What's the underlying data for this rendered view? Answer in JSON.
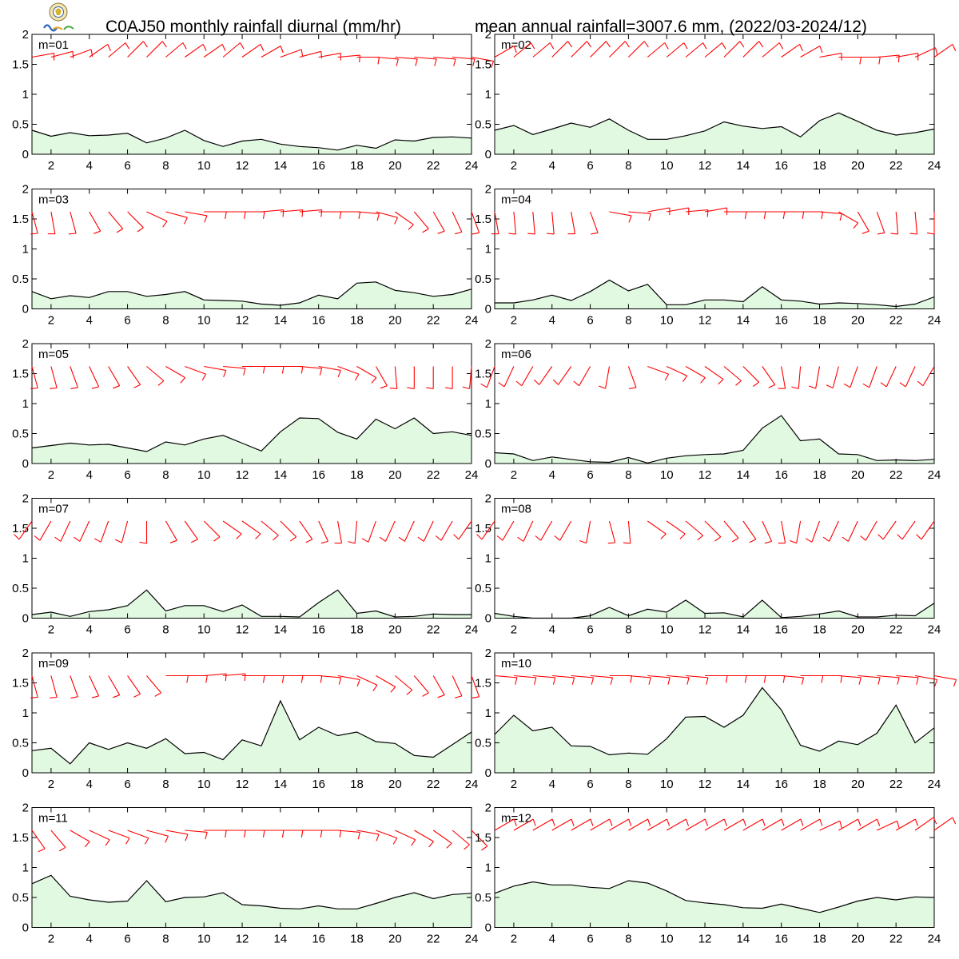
{
  "title": "C0AJ50 monthly rainfall diurnal (mm/hr)",
  "subtitle": "mean annual rainfall=3007.6 mm, (2022/03-2024/12)",
  "colors": {
    "area_fill": "#e1f9e1",
    "line": "#000000",
    "wind_barb": "#ff0000"
  },
  "chart_data": [
    {
      "type": "area",
      "panel_label": "m=01",
      "x": [
        1,
        2,
        3,
        4,
        5,
        6,
        7,
        8,
        9,
        10,
        11,
        12,
        13,
        14,
        15,
        16,
        17,
        18,
        19,
        20,
        21,
        22,
        23,
        24
      ],
      "values": [
        0.4,
        0.3,
        0.36,
        0.31,
        0.32,
        0.35,
        0.19,
        0.27,
        0.4,
        0.23,
        0.13,
        0.22,
        0.25,
        0.17,
        0.13,
        0.11,
        0.07,
        0.15,
        0.1,
        0.24,
        0.22,
        0.28,
        0.29,
        0.27
      ],
      "wind_from_deg": [
        80,
        75,
        70,
        55,
        50,
        45,
        45,
        50,
        55,
        55,
        50,
        55,
        60,
        70,
        75,
        80,
        85,
        90,
        95,
        95,
        95,
        95,
        95,
        100
      ],
      "xlim": [
        1,
        24
      ],
      "ylim": [
        0,
        2
      ],
      "x_ticks": [
        "2",
        "4",
        "6",
        "8",
        "10",
        "12",
        "14",
        "16",
        "18",
        "20",
        "22",
        "24"
      ],
      "y_ticks": [
        "0",
        "0.5",
        "1",
        "1.5",
        "2"
      ]
    },
    {
      "type": "area",
      "panel_label": "m=02",
      "x": [
        1,
        2,
        3,
        4,
        5,
        6,
        7,
        8,
        9,
        10,
        11,
        12,
        13,
        14,
        15,
        16,
        17,
        18,
        19,
        20,
        21,
        22,
        23,
        24
      ],
      "values": [
        0.4,
        0.48,
        0.33,
        0.42,
        0.52,
        0.45,
        0.59,
        0.4,
        0.25,
        0.25,
        0.31,
        0.39,
        0.54,
        0.47,
        0.43,
        0.46,
        0.29,
        0.56,
        0.69,
        0.55,
        0.4,
        0.32,
        0.36,
        0.42
      ],
      "wind_from_deg": [
        60,
        50,
        50,
        45,
        45,
        45,
        45,
        45,
        50,
        50,
        50,
        50,
        45,
        45,
        50,
        55,
        60,
        80,
        90,
        90,
        85,
        80,
        65,
        55
      ],
      "xlim": [
        1,
        24
      ],
      "ylim": [
        0,
        2
      ],
      "x_ticks": [
        "2",
        "4",
        "6",
        "8",
        "10",
        "12",
        "14",
        "16",
        "18",
        "20",
        "22",
        "24"
      ],
      "y_ticks": [
        "0",
        "0.5",
        "1",
        "1.5",
        "2"
      ]
    },
    {
      "type": "area",
      "panel_label": "m=03",
      "x": [
        1,
        2,
        3,
        4,
        5,
        6,
        7,
        8,
        9,
        10,
        11,
        12,
        13,
        14,
        15,
        16,
        17,
        18,
        19,
        20,
        21,
        22,
        23,
        24
      ],
      "values": [
        0.29,
        0.17,
        0.22,
        0.19,
        0.29,
        0.29,
        0.21,
        0.24,
        0.29,
        0.15,
        0.14,
        0.13,
        0.08,
        0.06,
        0.1,
        0.23,
        0.17,
        0.43,
        0.45,
        0.31,
        0.27,
        0.21,
        0.24,
        0.33
      ],
      "wind_from_deg": [
        165,
        170,
        165,
        150,
        140,
        135,
        115,
        105,
        100,
        90,
        90,
        90,
        85,
        85,
        85,
        90,
        90,
        95,
        105,
        125,
        140,
        150,
        155,
        160
      ],
      "xlim": [
        1,
        24
      ],
      "ylim": [
        0,
        2
      ],
      "x_ticks": [
        "2",
        "4",
        "6",
        "8",
        "10",
        "12",
        "14",
        "16",
        "18",
        "20",
        "22",
        "24"
      ],
      "y_ticks": [
        "0",
        "0.5",
        "1",
        "1.5",
        "2"
      ]
    },
    {
      "type": "area",
      "panel_label": "m=04",
      "x": [
        1,
        2,
        3,
        4,
        5,
        6,
        7,
        8,
        9,
        10,
        11,
        12,
        13,
        14,
        15,
        16,
        17,
        18,
        19,
        20,
        21,
        22,
        23,
        24
      ],
      "values": [
        0.1,
        0.1,
        0.15,
        0.23,
        0.14,
        0.29,
        0.48,
        0.3,
        0.41,
        0.07,
        0.07,
        0.15,
        0.15,
        0.12,
        0.37,
        0.15,
        0.13,
        0.08,
        0.1,
        0.09,
        0.07,
        0.04,
        0.08,
        0.2
      ],
      "wind_from_deg": [
        170,
        175,
        175,
        175,
        170,
        160,
        100,
        95,
        80,
        80,
        85,
        80,
        90,
        90,
        90,
        90,
        90,
        95,
        120,
        150,
        160,
        175,
        175,
        180
      ],
      "xlim": [
        1,
        24
      ],
      "ylim": [
        0,
        2
      ],
      "x_ticks": [
        "2",
        "4",
        "6",
        "8",
        "10",
        "12",
        "14",
        "16",
        "18",
        "20",
        "22",
        "24"
      ],
      "y_ticks": [
        "0",
        "0.5",
        "1",
        "1.5",
        "2"
      ]
    },
    {
      "type": "area",
      "panel_label": "m=05",
      "x": [
        1,
        2,
        3,
        4,
        5,
        6,
        7,
        8,
        9,
        10,
        11,
        12,
        13,
        14,
        15,
        16,
        17,
        18,
        19,
        20,
        21,
        22,
        23,
        24
      ],
      "values": [
        0.26,
        0.3,
        0.34,
        0.31,
        0.32,
        0.26,
        0.2,
        0.36,
        0.31,
        0.41,
        0.47,
        0.34,
        0.21,
        0.53,
        0.76,
        0.75,
        0.52,
        0.41,
        0.74,
        0.58,
        0.76,
        0.5,
        0.53,
        0.47
      ],
      "wind_from_deg": [
        165,
        165,
        160,
        155,
        150,
        145,
        130,
        120,
        110,
        100,
        95,
        90,
        90,
        90,
        95,
        100,
        110,
        120,
        150,
        175,
        180,
        180,
        180,
        185
      ],
      "xlim": [
        1,
        24
      ],
      "ylim": [
        0,
        2
      ],
      "x_ticks": [
        "2",
        "4",
        "6",
        "8",
        "10",
        "12",
        "14",
        "16",
        "18",
        "20",
        "22",
        "24"
      ],
      "y_ticks": [
        "0",
        "0.5",
        "1",
        "1.5",
        "2"
      ]
    },
    {
      "type": "area",
      "panel_label": "m=06",
      "x": [
        1,
        2,
        3,
        4,
        5,
        6,
        7,
        8,
        9,
        10,
        11,
        12,
        13,
        14,
        15,
        16,
        17,
        18,
        19,
        20,
        21,
        22,
        23,
        24
      ],
      "values": [
        0.18,
        0.16,
        0.05,
        0.11,
        0.07,
        0.03,
        0.02,
        0.1,
        0.01,
        0.09,
        0.13,
        0.15,
        0.16,
        0.22,
        0.59,
        0.8,
        0.38,
        0.41,
        0.16,
        0.15,
        0.05,
        0.06,
        0.05,
        0.07
      ],
      "wind_from_deg": [
        200,
        205,
        210,
        215,
        215,
        210,
        190,
        160,
        110,
        115,
        120,
        125,
        130,
        135,
        145,
        170,
        185,
        190,
        195,
        200,
        200,
        205,
        205,
        210
      ],
      "xlim": [
        1,
        24
      ],
      "ylim": [
        0,
        2
      ],
      "x_ticks": [
        "2",
        "4",
        "6",
        "8",
        "10",
        "12",
        "14",
        "16",
        "18",
        "20",
        "22",
        "24"
      ],
      "y_ticks": [
        "0",
        "0.5",
        "1",
        "1.5",
        "2"
      ]
    },
    {
      "type": "area",
      "panel_label": "m=07",
      "x": [
        1,
        2,
        3,
        4,
        5,
        6,
        7,
        8,
        9,
        10,
        11,
        12,
        13,
        14,
        15,
        16,
        17,
        18,
        19,
        20,
        21,
        22,
        23,
        24
      ],
      "values": [
        0.06,
        0.1,
        0.03,
        0.11,
        0.14,
        0.21,
        0.47,
        0.12,
        0.21,
        0.21,
        0.11,
        0.22,
        0.03,
        0.03,
        0.02,
        0.26,
        0.47,
        0.08,
        0.12,
        0.02,
        0.03,
        0.07,
        0.06,
        0.06
      ],
      "wind_from_deg": [
        215,
        210,
        205,
        205,
        200,
        195,
        180,
        150,
        145,
        135,
        125,
        125,
        130,
        135,
        145,
        155,
        170,
        185,
        200,
        205,
        205,
        205,
        210,
        215
      ],
      "xlim": [
        1,
        24
      ],
      "ylim": [
        0,
        2
      ],
      "x_ticks": [
        "2",
        "4",
        "6",
        "8",
        "10",
        "12",
        "14",
        "16",
        "18",
        "20",
        "22",
        "24"
      ],
      "y_ticks": [
        "0",
        "0.5",
        "1",
        "1.5",
        "2"
      ]
    },
    {
      "type": "area",
      "panel_label": "m=08",
      "x": [
        1,
        2,
        3,
        4,
        5,
        6,
        7,
        8,
        9,
        10,
        11,
        12,
        13,
        14,
        15,
        16,
        17,
        18,
        19,
        20,
        21,
        22,
        23,
        24
      ],
      "values": [
        0.08,
        0.03,
        0.0,
        0.0,
        0.0,
        0.04,
        0.18,
        0.04,
        0.15,
        0.1,
        0.3,
        0.08,
        0.09,
        0.02,
        0.3,
        0.01,
        0.03,
        0.07,
        0.12,
        0.02,
        0.02,
        0.05,
        0.04,
        0.25
      ],
      "wind_from_deg": [
        215,
        210,
        205,
        210,
        210,
        190,
        165,
        175,
        125,
        125,
        130,
        135,
        140,
        145,
        155,
        170,
        190,
        200,
        205,
        205,
        210,
        215,
        215,
        215
      ],
      "xlim": [
        1,
        24
      ],
      "ylim": [
        0,
        2
      ],
      "x_ticks": [
        "2",
        "4",
        "6",
        "8",
        "10",
        "12",
        "14",
        "16",
        "18",
        "20",
        "22",
        "24"
      ],
      "y_ticks": [
        "0",
        "0.5",
        "1",
        "1.5",
        "2"
      ]
    },
    {
      "type": "area",
      "panel_label": "m=09",
      "x": [
        1,
        2,
        3,
        4,
        5,
        6,
        7,
        8,
        9,
        10,
        11,
        12,
        13,
        14,
        15,
        16,
        17,
        18,
        19,
        20,
        21,
        22,
        23,
        24
      ],
      "values": [
        0.37,
        0.41,
        0.15,
        0.5,
        0.39,
        0.5,
        0.41,
        0.57,
        0.32,
        0.34,
        0.22,
        0.55,
        0.45,
        1.2,
        0.55,
        0.76,
        0.62,
        0.68,
        0.52,
        0.49,
        0.29,
        0.26,
        0.47,
        0.68
      ],
      "wind_from_deg": [
        165,
        165,
        160,
        155,
        150,
        145,
        140,
        90,
        90,
        85,
        85,
        90,
        90,
        90,
        90,
        95,
        100,
        115,
        120,
        130,
        140,
        150,
        155,
        160
      ],
      "xlim": [
        1,
        24
      ],
      "ylim": [
        0,
        2
      ],
      "x_ticks": [
        "2",
        "4",
        "6",
        "8",
        "10",
        "12",
        "14",
        "16",
        "18",
        "20",
        "22",
        "24"
      ],
      "y_ticks": [
        "0",
        "0.5",
        "1",
        "1.5",
        "2"
      ]
    },
    {
      "type": "area",
      "panel_label": "m=10",
      "x": [
        1,
        2,
        3,
        4,
        5,
        6,
        7,
        8,
        9,
        10,
        11,
        12,
        13,
        14,
        15,
        16,
        17,
        18,
        19,
        20,
        21,
        22,
        23,
        24
      ],
      "values": [
        0.64,
        0.96,
        0.7,
        0.76,
        0.45,
        0.44,
        0.3,
        0.33,
        0.31,
        0.57,
        0.93,
        0.94,
        0.76,
        0.96,
        1.42,
        1.05,
        0.46,
        0.36,
        0.53,
        0.47,
        0.66,
        1.13,
        0.5,
        0.75
      ],
      "wind_from_deg": [
        95,
        95,
        95,
        95,
        95,
        95,
        90,
        95,
        95,
        95,
        95,
        90,
        90,
        90,
        90,
        95,
        90,
        90,
        95,
        95,
        95,
        95,
        100,
        100
      ],
      "xlim": [
        1,
        24
      ],
      "ylim": [
        0,
        2
      ],
      "x_ticks": [
        "2",
        "4",
        "6",
        "8",
        "10",
        "12",
        "14",
        "16",
        "18",
        "20",
        "22",
        "24"
      ],
      "y_ticks": [
        "0",
        "0.5",
        "1",
        "1.5",
        "2"
      ]
    },
    {
      "type": "area",
      "panel_label": "m=11",
      "x": [
        1,
        2,
        3,
        4,
        5,
        6,
        7,
        8,
        9,
        10,
        11,
        12,
        13,
        14,
        15,
        16,
        17,
        18,
        19,
        20,
        21,
        22,
        23,
        24
      ],
      "values": [
        0.73,
        0.87,
        0.52,
        0.46,
        0.42,
        0.44,
        0.78,
        0.43,
        0.5,
        0.51,
        0.58,
        0.38,
        0.36,
        0.32,
        0.31,
        0.36,
        0.31,
        0.31,
        0.4,
        0.5,
        0.58,
        0.48,
        0.55,
        0.57
      ],
      "wind_from_deg": [
        145,
        140,
        120,
        115,
        110,
        110,
        105,
        100,
        95,
        90,
        90,
        90,
        90,
        90,
        90,
        90,
        95,
        100,
        110,
        115,
        120,
        125,
        130,
        135
      ],
      "xlim": [
        1,
        24
      ],
      "ylim": [
        0,
        2
      ],
      "x_ticks": [
        "2",
        "4",
        "6",
        "8",
        "10",
        "12",
        "14",
        "16",
        "18",
        "20",
        "22",
        "24"
      ],
      "y_ticks": [
        "0",
        "0.5",
        "1",
        "1.5",
        "2"
      ]
    },
    {
      "type": "area",
      "panel_label": "m=12",
      "x": [
        1,
        2,
        3,
        4,
        5,
        6,
        7,
        8,
        9,
        10,
        11,
        12,
        13,
        14,
        15,
        16,
        17,
        18,
        19,
        20,
        21,
        22,
        23,
        24
      ],
      "values": [
        0.57,
        0.69,
        0.76,
        0.71,
        0.71,
        0.67,
        0.65,
        0.78,
        0.74,
        0.61,
        0.45,
        0.41,
        0.38,
        0.33,
        0.32,
        0.39,
        0.32,
        0.25,
        0.34,
        0.44,
        0.5,
        0.46,
        0.51,
        0.5
      ],
      "wind_from_deg": [
        60,
        60,
        60,
        60,
        60,
        60,
        60,
        60,
        60,
        60,
        60,
        60,
        60,
        60,
        60,
        60,
        60,
        65,
        60,
        60,
        65,
        60,
        55,
        55
      ],
      "xlim": [
        1,
        24
      ],
      "ylim": [
        0,
        2
      ],
      "x_ticks": [
        "2",
        "4",
        "6",
        "8",
        "10",
        "12",
        "14",
        "16",
        "18",
        "20",
        "22",
        "24"
      ],
      "y_ticks": [
        "0",
        "0.5",
        "1",
        "1.5",
        "2"
      ]
    }
  ]
}
